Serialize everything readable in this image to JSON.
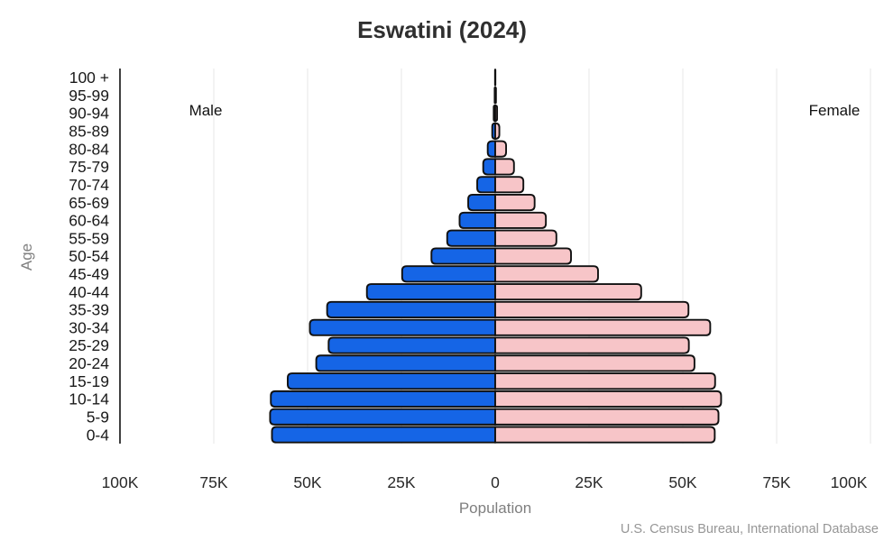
{
  "chart_data": {
    "type": "bar",
    "variant": "population_pyramid",
    "title": "Eswatini (2024)",
    "xlabel": "Population",
    "ylabel": "Age",
    "unit": "thousands of persons",
    "order": "top-to-bottom",
    "categories": [
      "100 +",
      "95-99",
      "90-94",
      "85-89",
      "80-84",
      "75-79",
      "70-74",
      "65-69",
      "60-64",
      "55-59",
      "50-54",
      "45-49",
      "40-44",
      "35-39",
      "30-34",
      "25-29",
      "20-24",
      "15-19",
      "10-14",
      "5-9",
      "0-4"
    ],
    "series": [
      {
        "name": "Male",
        "side": "left",
        "color": "#1565e6",
        "values_thousands": [
          0.05,
          0.15,
          0.4,
          0.8,
          2.0,
          3.2,
          4.8,
          7.2,
          9.5,
          12.8,
          17.0,
          24.8,
          34.2,
          44.8,
          49.4,
          44.4,
          47.7,
          55.3,
          59.8,
          60.0,
          59.5
        ]
      },
      {
        "name": "Female",
        "side": "right",
        "color": "#f7c5c8",
        "values_thousands": [
          0.05,
          0.2,
          0.5,
          1.1,
          2.9,
          5.0,
          7.5,
          10.5,
          13.5,
          16.3,
          20.2,
          27.4,
          38.9,
          51.5,
          57.3,
          51.6,
          53.1,
          58.6,
          60.2,
          59.5,
          58.5
        ]
      }
    ],
    "x_axis": {
      "ticks_thousands": [
        -100,
        -75,
        -50,
        -25,
        0,
        25,
        50,
        75,
        100
      ],
      "tick_labels": [
        "100K",
        "75K",
        "50K",
        "25K",
        "0",
        "25K",
        "50K",
        "75K",
        "100K"
      ],
      "range_thousands": [
        -100,
        100
      ],
      "gridlines": true
    },
    "source": "U.S. Census Bureau, International Database"
  },
  "colors": {
    "male": "#1565e6",
    "female": "#f7c5c8",
    "bar_outline": "#111111",
    "gridline": "#e7e7e7",
    "axis_line": "#111111",
    "tick_text": "#2a2a2a",
    "age_text": "#1a1a1a",
    "title_text": "#2f2f2f",
    "muted_text": "#7f7f7f",
    "source_text": "#969696"
  }
}
